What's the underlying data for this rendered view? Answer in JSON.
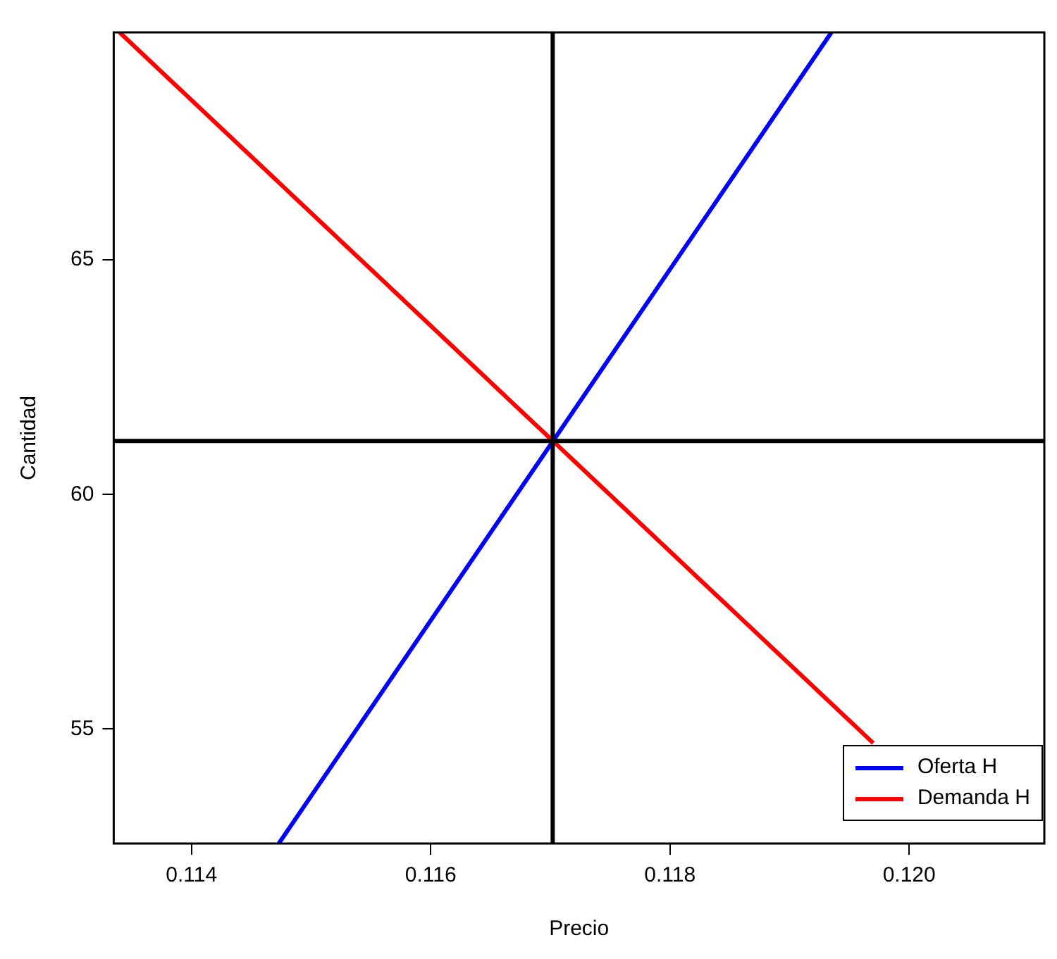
{
  "chart_data": {
    "type": "line",
    "xlabel": "Precio",
    "ylabel": "Cantidad",
    "xlim": [
      0.11335,
      0.12113
    ],
    "xticks": [
      0.114,
      0.116,
      0.118,
      {
        "value": 0.12,
        "label": "0.120"
      }
    ],
    "ylim": [
      52.56,
      69.85
    ],
    "yticks": [
      55,
      60,
      65
    ],
    "series": [
      {
        "name": "Oferta H",
        "color": "#0000ff",
        "x": [
          0.11473,
          0.11935
        ],
        "values": [
          52.56,
          69.85
        ]
      },
      {
        "name": "Demanda H",
        "color": "#ff0000",
        "x": [
          0.1134,
          0.1197
        ],
        "values": [
          69.85,
          54.7
        ]
      }
    ],
    "ref_lines": [
      {
        "axis": "x",
        "value": 0.11702,
        "color": "#000000"
      },
      {
        "axis": "y",
        "value": 61.14,
        "color": "#000000"
      }
    ],
    "grid": false,
    "legend": "bottom right",
    "marker": "none",
    "line_style": "solid"
  }
}
